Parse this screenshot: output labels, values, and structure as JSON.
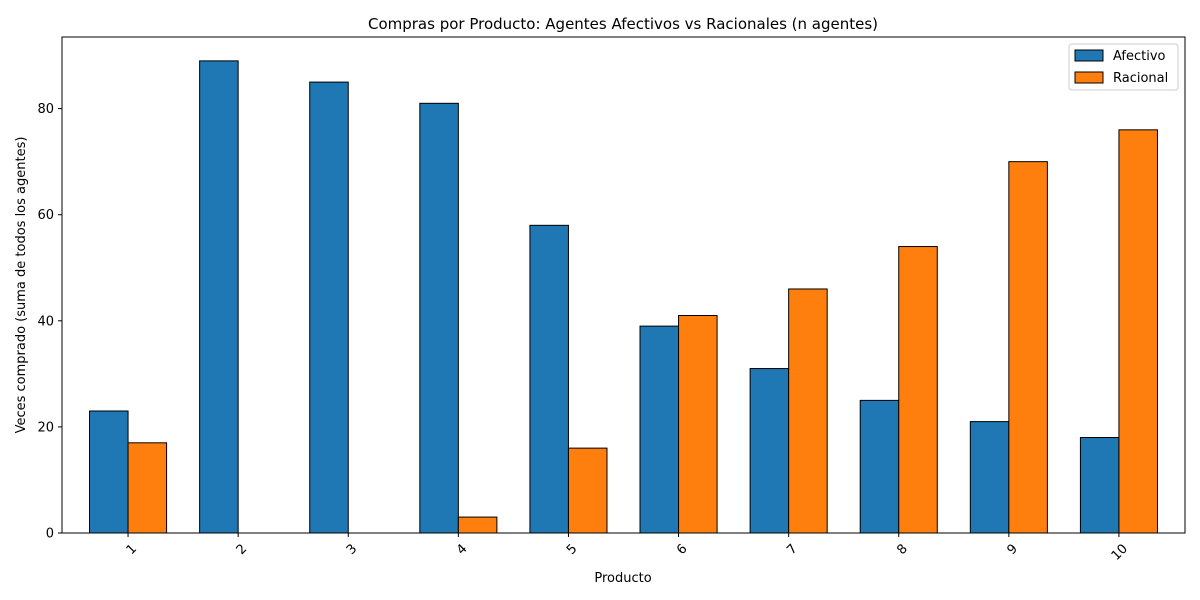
{
  "chart_data": {
    "type": "bar",
    "title": "Compras por Producto: Agentes Afectivos vs Racionales (n agentes)",
    "xlabel": "Producto",
    "ylabel": "Veces comprado (suma de todos los agentes)",
    "categories": [
      "1",
      "2",
      "3",
      "4",
      "5",
      "6",
      "7",
      "8",
      "9",
      "10"
    ],
    "series": [
      {
        "name": "Afectivo",
        "color": "#1f77b4",
        "values": [
          23,
          89,
          85,
          81,
          58,
          39,
          31,
          25,
          21,
          18
        ]
      },
      {
        "name": "Racional",
        "color": "#ff7f0e",
        "values": [
          17,
          0,
          0,
          3,
          16,
          41,
          46,
          54,
          70,
          76
        ]
      }
    ],
    "ylim": [
      0,
      93.5
    ],
    "yticks": [
      "0",
      "20",
      "40",
      "60",
      "80"
    ],
    "grid": false,
    "legend_position": "top-right",
    "xtick_rotation": 45
  }
}
